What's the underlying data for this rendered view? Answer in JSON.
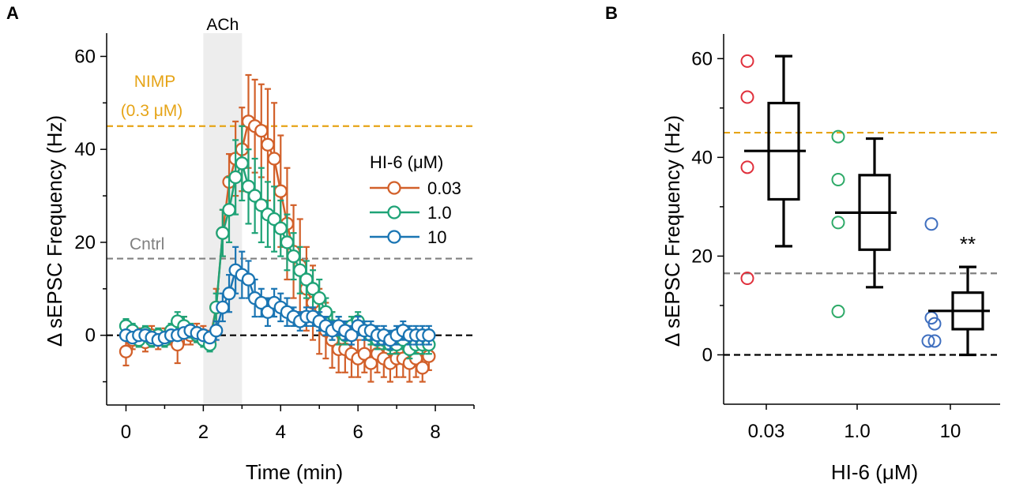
{
  "colors": {
    "orange": "#D2602A",
    "green": "#1FA377",
    "blue": "#1A75B3",
    "nimp": "#E6A417",
    "cntrl": "#808080",
    "zero": "#000000",
    "b_red": "#E0303C",
    "b_green": "#2EAA68",
    "b_blue": "#3F6FBF",
    "ach_shade": "#EDEDED"
  },
  "chart_data": [
    {
      "panel": "A",
      "type": "line",
      "title": "",
      "xlabel": "Time (min)",
      "ylabel": "Δ sEPSC Frequency (Hz)",
      "xlim": [
        -0.5,
        9.0
      ],
      "ylim": [
        -15,
        65
      ],
      "xticks": [
        0,
        2,
        4,
        6,
        8
      ],
      "xtick_labels": [
        "0",
        "2",
        "4",
        "6",
        "8"
      ],
      "yticks": [
        0,
        20,
        40,
        60
      ],
      "ytick_labels": [
        "0",
        "20",
        "40",
        "60"
      ],
      "ach_label": "ACh",
      "ach_range": [
        2.0,
        3.0
      ],
      "legend_title": "HI-6 (μM)",
      "legend_position": "right",
      "reference_lines": [
        {
          "name": "NIMP",
          "value": 45,
          "label1": "NIMP",
          "label2": "(0.3 μM)",
          "color_key": "nimp"
        },
        {
          "name": "Cntrl",
          "value": 16.5,
          "label1": "Cntrl",
          "color_key": "cntrl"
        },
        {
          "name": "zero",
          "value": 0,
          "color_key": "zero"
        }
      ],
      "series": [
        {
          "name": "0.03",
          "color_key": "orange",
          "x": [
            0,
            0.167,
            0.333,
            0.5,
            0.667,
            0.833,
            1.0,
            1.167,
            1.333,
            1.5,
            1.667,
            1.833,
            2.0,
            2.167,
            2.333,
            2.5,
            2.667,
            2.833,
            3.0,
            3.167,
            3.333,
            3.5,
            3.667,
            3.833,
            4.0,
            4.167,
            4.333,
            4.5,
            4.667,
            4.833,
            5.0,
            5.167,
            5.333,
            5.5,
            5.667,
            5.833,
            6.0,
            6.167,
            6.333,
            6.5,
            6.667,
            6.833,
            7.0,
            7.167,
            7.333,
            7.5,
            7.667,
            7.833
          ],
          "y": [
            -3.5,
            -1,
            -0.5,
            -1.5,
            0,
            -1,
            -0.5,
            0,
            -2,
            1,
            0,
            0.5,
            0,
            -1,
            6,
            22,
            33,
            38,
            40,
            46,
            45,
            44,
            41,
            38,
            31,
            24,
            18,
            15,
            10,
            7,
            3,
            1,
            -1,
            -3,
            -3,
            -4,
            -5,
            -4,
            -6,
            -4,
            -5,
            -6,
            -5,
            -5,
            -6,
            -5,
            -7,
            -4.5
          ],
          "err": [
            3,
            2,
            2,
            2,
            2,
            2,
            2,
            2,
            4,
            3,
            2,
            2,
            2,
            2,
            4,
            5,
            6,
            8,
            9,
            10,
            10,
            10,
            12,
            12,
            12,
            12,
            10,
            10,
            9,
            8,
            7,
            6,
            6,
            5,
            5,
            5,
            4,
            4,
            4,
            4,
            4,
            4,
            4,
            4,
            4,
            4,
            3,
            3
          ]
        },
        {
          "name": "1.0",
          "color_key": "green",
          "x": [
            0,
            0.167,
            0.333,
            0.5,
            0.667,
            0.833,
            1.0,
            1.167,
            1.333,
            1.5,
            1.667,
            1.833,
            2.0,
            2.167,
            2.333,
            2.5,
            2.667,
            2.833,
            3.0,
            3.167,
            3.333,
            3.5,
            3.667,
            3.833,
            4.0,
            4.167,
            4.333,
            4.5,
            4.667,
            4.833,
            5.0,
            5.167,
            5.333,
            5.5,
            5.667,
            5.833,
            6.0,
            6.167,
            6.333,
            6.5,
            6.667,
            6.833,
            7.0,
            7.167,
            7.333,
            7.5,
            7.667,
            7.833
          ],
          "y": [
            2,
            1,
            -1,
            0.5,
            -1,
            0,
            -1,
            1,
            3,
            2,
            1,
            0,
            -1,
            -2,
            6,
            22,
            27,
            34,
            37,
            32,
            30,
            28,
            26,
            25,
            23,
            20,
            17,
            14,
            12,
            10,
            8,
            5,
            2,
            1,
            0,
            2,
            3,
            1,
            0,
            -1,
            -1,
            -2,
            -2,
            -1,
            -3,
            -2,
            -2,
            -2
          ],
          "err": [
            1.5,
            1.5,
            1.5,
            1.5,
            1.5,
            1.5,
            1.5,
            1.5,
            2,
            2,
            1.5,
            1.5,
            1.5,
            1.5,
            3,
            5,
            7,
            8,
            8,
            8,
            8,
            8,
            7,
            7,
            6,
            6,
            5,
            5,
            4,
            4,
            4,
            3,
            3,
            3,
            2,
            2,
            2,
            2,
            2,
            2,
            2,
            2,
            2,
            2,
            2,
            2,
            2,
            2
          ]
        },
        {
          "name": "10",
          "color_key": "blue",
          "x": [
            0,
            0.167,
            0.333,
            0.5,
            0.667,
            0.833,
            1.0,
            1.167,
            1.333,
            1.5,
            1.667,
            1.833,
            2.0,
            2.167,
            2.333,
            2.5,
            2.667,
            2.833,
            3.0,
            3.167,
            3.333,
            3.5,
            3.667,
            3.833,
            4.0,
            4.167,
            4.333,
            4.5,
            4.667,
            4.833,
            5.0,
            5.167,
            5.333,
            5.5,
            5.667,
            5.833,
            6.0,
            6.167,
            6.333,
            6.5,
            6.667,
            6.833,
            7.0,
            7.167,
            7.333,
            7.5,
            7.667,
            7.833
          ],
          "y": [
            0,
            -0.5,
            0,
            0,
            -0.5,
            -1,
            -0.5,
            0,
            0,
            0.5,
            1,
            0.5,
            0,
            -0.5,
            1,
            6,
            9,
            14,
            13,
            12,
            8,
            7,
            5,
            7,
            6,
            5,
            4,
            3,
            4,
            4,
            3,
            2,
            1,
            2,
            1,
            0,
            2,
            1,
            1,
            0,
            0,
            -1,
            0,
            1,
            0,
            0,
            0,
            0
          ],
          "err": [
            1,
            1,
            1,
            1,
            1,
            1,
            1,
            1,
            1,
            1,
            1,
            1,
            1,
            1,
            2,
            3,
            4,
            5,
            5,
            4,
            4,
            3,
            3,
            3,
            3,
            3,
            2,
            2,
            2,
            2,
            2,
            2,
            2,
            2,
            2,
            2,
            2,
            2,
            2,
            2,
            2,
            2,
            2,
            2,
            2,
            2,
            2,
            2
          ]
        }
      ]
    },
    {
      "panel": "B",
      "type": "box",
      "title": "",
      "xlabel": "HI-6 (μM)",
      "ylabel": "Δ sEPSC Frequency (Hz)",
      "ylim": [
        -10,
        65
      ],
      "yticks": [
        0,
        20,
        40,
        60
      ],
      "ytick_labels": [
        "0",
        "20",
        "40",
        "60"
      ],
      "categories": [
        "0.03",
        "1.0",
        "10"
      ],
      "reference_lines": [
        {
          "name": "NIMP",
          "value": 45,
          "color_key": "nimp"
        },
        {
          "name": "Cntrl",
          "value": 16.5,
          "color_key": "cntrl"
        },
        {
          "name": "zero",
          "value": 0,
          "color_key": "zero"
        }
      ],
      "boxes": [
        {
          "category": "0.03",
          "whisker_low": 22,
          "q1": 31.5,
          "median": 41.3,
          "q3": 51,
          "whisker_high": 60.5,
          "points": [
            59.5,
            52.2,
            38,
            15.5
          ],
          "color_key": "b_red"
        },
        {
          "category": "1.0",
          "whisker_low": 13.7,
          "q1": 21.3,
          "median": 28.8,
          "q3": 36.4,
          "whisker_high": 43.8,
          "points": [
            44.2,
            35.5,
            26.8,
            8.8
          ],
          "color_key": "b_green"
        },
        {
          "category": "10",
          "whisker_low": 0,
          "q1": 5.2,
          "median": 8.9,
          "q3": 12.6,
          "whisker_high": 17.8,
          "points": [
            26.5,
            7.5,
            6.3,
            2.8,
            2.8
          ],
          "color_key": "b_blue"
        }
      ],
      "annotation": "**"
    }
  ]
}
